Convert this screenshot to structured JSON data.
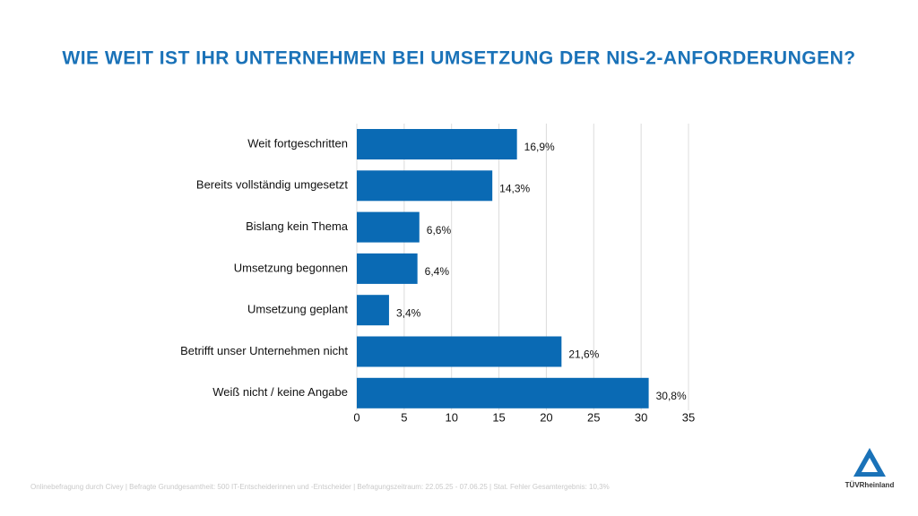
{
  "chart_data": {
    "type": "bar",
    "title": "WIE WEIT IST IHR UNTERNEHMEN BEI UMSETZUNG DER NIS-2-ANFORDERUNGEN?",
    "categories": [
      "Weit fortgeschritten",
      "Bereits vollständig umgesetzt",
      "Bislang kein Thema",
      "Umsetzung begonnen",
      "Umsetzung geplant",
      "Betrifft unser Unternehmen nicht",
      "Weiß nicht / keine Angabe"
    ],
    "values": [
      16.9,
      14.3,
      6.6,
      6.4,
      3.4,
      21.6,
      30.8
    ],
    "value_labels": [
      "16,9%",
      "14,3%",
      "6,6%",
      "6,4%",
      "3,4%",
      "21,6%",
      "30,8%"
    ],
    "color": "#0a6ab4",
    "xlim": [
      0,
      35
    ],
    "xticks": [
      0,
      5,
      10,
      15,
      20,
      25,
      30,
      35
    ],
    "grid": true
  },
  "footnote": "Onlinebefragung durch Civey | Befragte Grundgesamtheit: 500 IT-Entscheiderinnen und -Entscheider | Befragungszeitraum: 22.05.25 - 07.06.25 | Stat. Fehler Gesamtergebnis: 10,3%",
  "logo": "TÜVRheinland"
}
